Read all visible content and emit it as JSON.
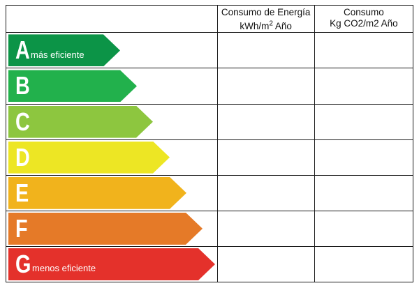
{
  "header": {
    "energy_title": "Consumo de Energía",
    "energy_unit_base": "kWh/m",
    "energy_unit_sup": "2",
    "energy_unit_rest": " Año",
    "co2_title": "Consumo",
    "co2_unit": "Kg CO2/m2 Año"
  },
  "bands": [
    {
      "letter": "A",
      "text": "más eficiente",
      "color": "#0c9447",
      "length_pct": 0.54
    },
    {
      "letter": "B",
      "text": "",
      "color": "#22b14c",
      "length_pct": 0.62
    },
    {
      "letter": "C",
      "text": "",
      "color": "#8dc63f",
      "length_pct": 0.7
    },
    {
      "letter": "D",
      "text": "",
      "color": "#ede624",
      "length_pct": 0.78
    },
    {
      "letter": "E",
      "text": "",
      "color": "#f1b31c",
      "length_pct": 0.86
    },
    {
      "letter": "F",
      "text": "",
      "color": "#e57a28",
      "length_pct": 0.94
    },
    {
      "letter": "G",
      "text": "menos eficiente",
      "color": "#e4312b",
      "length_pct": 1.0
    }
  ]
}
